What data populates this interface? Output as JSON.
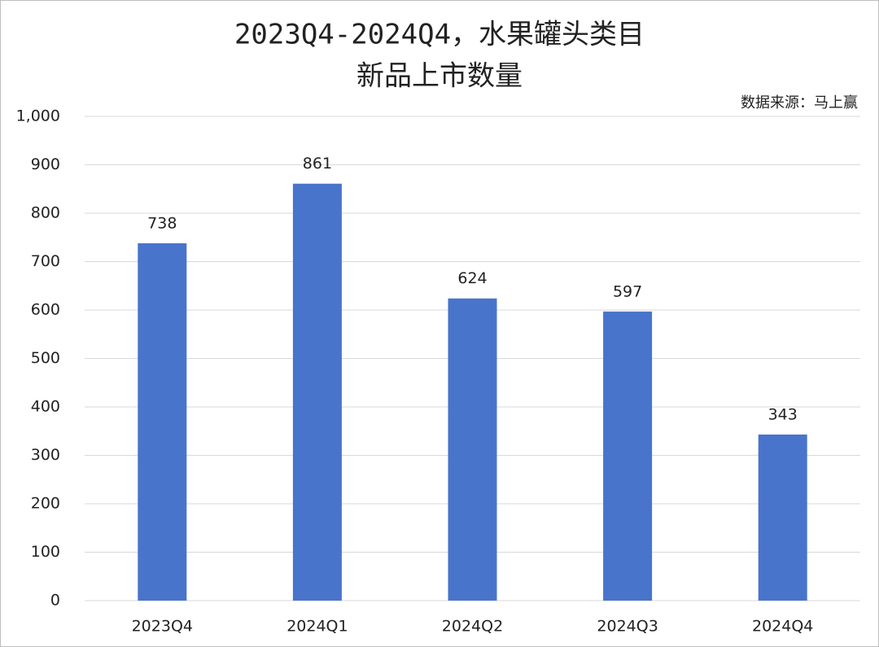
{
  "chart_data": {
    "type": "bar",
    "title": [
      "2023Q4-2024Q4，水果罐头类目",
      "新品上市数量"
    ],
    "source": "数据来源：马上赢",
    "categories": [
      "2023Q4",
      "2024Q1",
      "2024Q2",
      "2024Q3",
      "2024Q4"
    ],
    "values": [
      738,
      861,
      624,
      597,
      343
    ],
    "color": "#4874cb",
    "ylim": [
      0,
      1000
    ],
    "yticks": [
      0,
      100,
      200,
      300,
      400,
      500,
      600,
      700,
      800,
      900,
      {
        "value": 1000,
        "label": "1,000"
      }
    ],
    "grid": true
  }
}
